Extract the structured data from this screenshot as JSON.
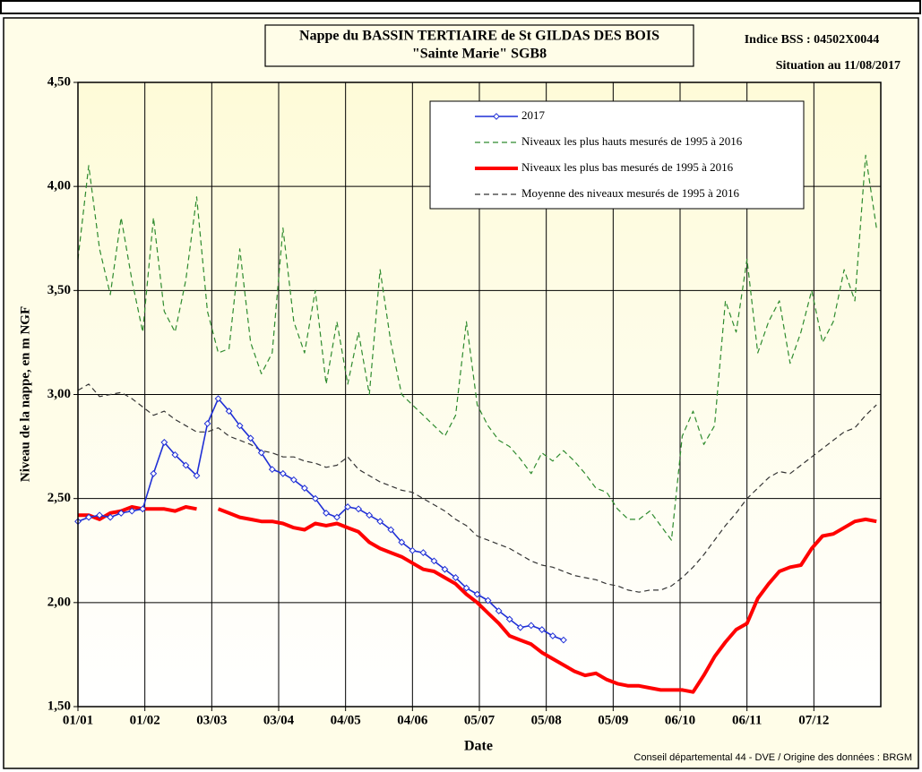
{
  "chart_data": {
    "type": "line",
    "title": "Nappe du BASSIN TERTIAIRE de St GILDAS DES BOIS",
    "subtitle": "\"Sainte Marie\" SGB8",
    "indice": "Indice BSS : 04502X0044",
    "situation": "Situation au 11/08/2017",
    "source": "Conseil départemental 44 - DVE /   Origine des données : BRGM",
    "x_label": "Date",
    "y_label": "Niveau de la nappe, en m NGF",
    "x": [
      0,
      5,
      10,
      15,
      20,
      25,
      30,
      35,
      40,
      45,
      50,
      55,
      60,
      65,
      70,
      75,
      80,
      85,
      90,
      95,
      100,
      105,
      110,
      115,
      120,
      125,
      130,
      135,
      140,
      145,
      150,
      155,
      160,
      165,
      170,
      175,
      180,
      185,
      190,
      195,
      200,
      205,
      210,
      215,
      220,
      225,
      230,
      235,
      240,
      245,
      250,
      255,
      260,
      265,
      270,
      275,
      280,
      285,
      290,
      295,
      300,
      305,
      310,
      315,
      320,
      325,
      330,
      335,
      340,
      345,
      350,
      355,
      360,
      365,
      370
    ],
    "xlim": [
      0,
      372
    ],
    "xticks": [
      {
        "value": 0,
        "label": "01/01"
      },
      {
        "value": 31,
        "label": "01/02"
      },
      {
        "value": 62,
        "label": "03/03"
      },
      {
        "value": 93,
        "label": "03/04"
      },
      {
        "value": 124,
        "label": "04/05"
      },
      {
        "value": 155,
        "label": "04/06"
      },
      {
        "value": 186,
        "label": "05/07"
      },
      {
        "value": 217,
        "label": "05/08"
      },
      {
        "value": 248,
        "label": "05/09"
      },
      {
        "value": 279,
        "label": "06/10"
      },
      {
        "value": 310,
        "label": "06/11"
      },
      {
        "value": 341,
        "label": "07/12"
      }
    ],
    "ylim": [
      1.5,
      4.5
    ],
    "yticks": [
      {
        "value": 1.5,
        "label": "1,50"
      },
      {
        "value": 2.0,
        "label": "2,00"
      },
      {
        "value": 2.5,
        "label": "2,50"
      },
      {
        "value": 3.0,
        "label": "3,00"
      },
      {
        "value": 3.5,
        "label": "3,50"
      },
      {
        "value": 4.0,
        "label": "4,00"
      },
      {
        "value": 4.5,
        "label": "4,50"
      }
    ],
    "grid": true,
    "legend": "top-right",
    "series": [
      {
        "name": "2017",
        "color": "#1f2fd6",
        "style": "solid",
        "marker": "diamond",
        "values": [
          2.39,
          2.41,
          2.42,
          2.41,
          2.43,
          2.44,
          2.45,
          2.62,
          2.77,
          2.71,
          2.66,
          2.61,
          2.86,
          2.98,
          2.92,
          2.85,
          2.79,
          2.72,
          2.64,
          2.62,
          2.59,
          2.55,
          2.5,
          2.43,
          2.41,
          2.46,
          2.45,
          2.42,
          2.39,
          2.35,
          2.29,
          2.25,
          2.24,
          2.2,
          2.16,
          2.12,
          2.07,
          2.04,
          2.01,
          1.96,
          1.92,
          1.88,
          1.89,
          1.87,
          1.84,
          1.82,
          null,
          null,
          null,
          null,
          null,
          null,
          null,
          null,
          null,
          null,
          null,
          null,
          null,
          null,
          null,
          null,
          null,
          null,
          null,
          null,
          null,
          null,
          null,
          null,
          null,
          null,
          null,
          null,
          null
        ]
      },
      {
        "name": "Niveaux les plus hauts mesurés de 1995 à 2016",
        "color": "#2e8b2e",
        "style": "dashed",
        "values": [
          3.65,
          4.1,
          3.7,
          3.48,
          3.85,
          3.55,
          3.3,
          3.85,
          3.4,
          3.3,
          3.55,
          3.95,
          3.4,
          3.2,
          3.22,
          3.7,
          3.25,
          3.1,
          3.2,
          3.8,
          3.35,
          3.2,
          3.5,
          3.05,
          3.35,
          3.05,
          3.3,
          3.0,
          3.6,
          3.25,
          3.0,
          2.95,
          2.9,
          2.85,
          2.8,
          2.9,
          3.35,
          2.95,
          2.85,
          2.78,
          2.75,
          2.69,
          2.62,
          2.72,
          2.68,
          2.73,
          2.68,
          2.62,
          2.55,
          2.53,
          2.45,
          2.4,
          2.4,
          2.44,
          2.37,
          2.3,
          2.8,
          2.92,
          2.76,
          2.85,
          3.45,
          3.3,
          3.65,
          3.2,
          3.35,
          3.45,
          3.15,
          3.3,
          3.5,
          3.25,
          3.35,
          3.6,
          3.45,
          4.15,
          3.8
        ]
      },
      {
        "name": "Niveaux les plus bas mesurés de 1995 à 2016",
        "color": "#ff0000",
        "style": "bold",
        "values": [
          2.42,
          2.42,
          2.4,
          2.43,
          2.44,
          2.46,
          2.45,
          2.45,
          2.45,
          2.44,
          2.46,
          2.45,
          null,
          2.45,
          2.43,
          2.41,
          2.4,
          2.39,
          2.39,
          2.38,
          2.36,
          2.35,
          2.38,
          2.37,
          2.38,
          2.36,
          2.34,
          2.29,
          2.26,
          2.24,
          2.22,
          2.19,
          2.16,
          2.15,
          2.12,
          2.09,
          2.04,
          2.0,
          1.95,
          1.9,
          1.84,
          1.82,
          1.8,
          1.76,
          1.73,
          1.7,
          1.67,
          1.65,
          1.66,
          1.63,
          1.61,
          1.6,
          1.6,
          1.59,
          1.58,
          1.58,
          1.58,
          1.57,
          1.65,
          1.74,
          1.81,
          1.87,
          1.9,
          2.02,
          2.09,
          2.15,
          2.17,
          2.18,
          2.26,
          2.32,
          2.33,
          2.36,
          2.39,
          2.4,
          2.39
        ]
      },
      {
        "name": "Moyenne des niveaux mesurés de 1995 à 2016",
        "color": "#333333",
        "style": "dashed",
        "values": [
          3.02,
          3.05,
          2.99,
          3.0,
          3.01,
          2.98,
          2.94,
          2.9,
          2.92,
          2.88,
          2.85,
          2.82,
          2.82,
          2.84,
          2.8,
          2.78,
          2.76,
          2.73,
          2.72,
          2.7,
          2.7,
          2.68,
          2.67,
          2.65,
          2.66,
          2.7,
          2.64,
          2.61,
          2.58,
          2.56,
          2.54,
          2.53,
          2.5,
          2.47,
          2.44,
          2.4,
          2.37,
          2.32,
          2.3,
          2.28,
          2.26,
          2.23,
          2.2,
          2.18,
          2.17,
          2.15,
          2.13,
          2.12,
          2.11,
          2.09,
          2.08,
          2.06,
          2.05,
          2.06,
          2.06,
          2.08,
          2.12,
          2.17,
          2.23,
          2.3,
          2.37,
          2.43,
          2.5,
          2.55,
          2.6,
          2.63,
          2.62,
          2.66,
          2.7,
          2.74,
          2.78,
          2.82,
          2.84,
          2.9,
          2.95
        ]
      }
    ]
  }
}
